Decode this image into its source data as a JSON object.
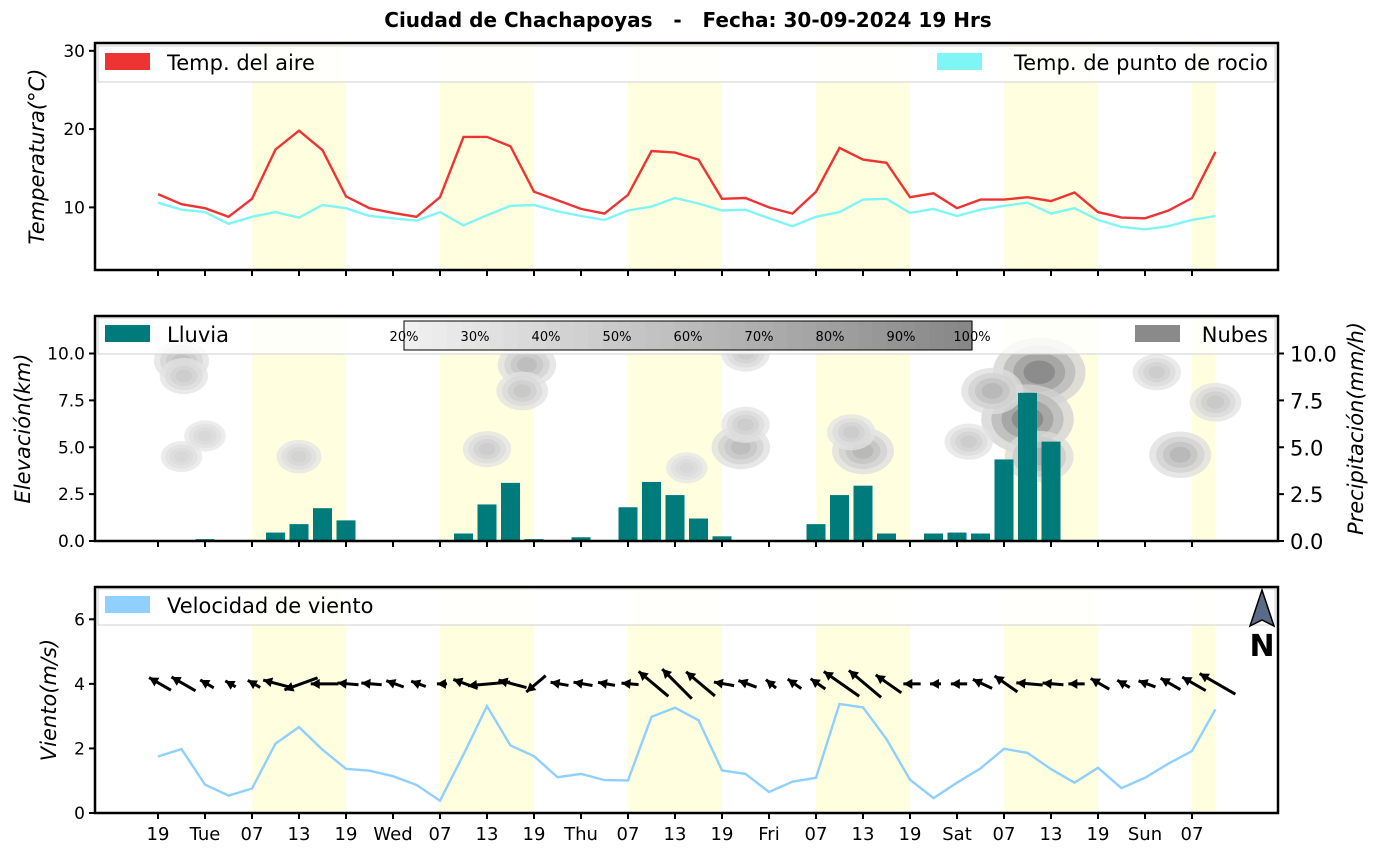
{
  "title": "Ciudad de Chachapoyas   -   Fecha: 30-09-2024 19 Hrs",
  "colors": {
    "air_temp": "#ee3333",
    "dew_point": "#80f5f5",
    "rain": "#007b7b",
    "clouds": "#8a8a8a",
    "wind": "#8fd0ff",
    "daytime_band": "#ffffe0",
    "north_arrow": "#5a6b88"
  },
  "x_tick_labels": [
    "19",
    "Tue",
    "07",
    "13",
    "19",
    "Wed",
    "07",
    "13",
    "19",
    "Thu",
    "07",
    "13",
    "19",
    "Fri",
    "07",
    "13",
    "19",
    "Sat",
    "07",
    "13",
    "19",
    "Sun",
    "07"
  ],
  "north_label": "N",
  "chart_data": [
    {
      "type": "line",
      "panel": "temperature",
      "ylabel": "Temperatura(°C)",
      "ylim": [
        2,
        31
      ],
      "yticks": [
        10,
        20,
        30
      ],
      "grid": false,
      "legend_placement": "top",
      "x_step_hours": 3,
      "series": [
        {
          "name": "Temp. del aire",
          "values": [
            11.7,
            10.4,
            9.9,
            8.8,
            11.1,
            17.4,
            19.8,
            17.3,
            11.4,
            9.9,
            9.3,
            8.8,
            11.3,
            19.0,
            19.0,
            17.8,
            12.0,
            10.9,
            9.8,
            9.2,
            11.6,
            17.2,
            17.0,
            16.1,
            11.1,
            11.2,
            10.0,
            9.2,
            12.0,
            17.6,
            16.1,
            15.7,
            11.3,
            11.8,
            9.9,
            11.0,
            11.0,
            11.3,
            10.8,
            11.9,
            9.4,
            8.7,
            8.6,
            9.6,
            11.2,
            17.1
          ]
        },
        {
          "name": "Temp. de punto de rocio",
          "values": [
            10.6,
            9.7,
            9.4,
            7.9,
            8.8,
            9.4,
            8.7,
            10.3,
            9.9,
            8.9,
            8.6,
            8.3,
            9.4,
            7.7,
            9.0,
            10.2,
            10.3,
            9.5,
            8.9,
            8.4,
            9.6,
            10.1,
            11.2,
            10.5,
            9.6,
            9.7,
            8.6,
            7.6,
            8.8,
            9.4,
            11.0,
            11.1,
            9.3,
            9.8,
            8.9,
            9.7,
            10.2,
            10.6,
            9.2,
            9.9,
            8.4,
            7.5,
            7.2,
            7.6,
            8.4,
            8.9
          ]
        }
      ]
    },
    {
      "type": "bar",
      "panel": "precipitation",
      "ylabel": "Elevación(km)",
      "y2label": "Precipitación(mm/h)",
      "ylim": [
        0,
        12
      ],
      "yticks": [
        "0.0",
        "2.5",
        "5.0",
        "7.5",
        "10.0"
      ],
      "legend_placement": "top",
      "colorbar_labels": [
        "20%",
        "30%",
        "40%",
        "50%",
        "60%",
        "70%",
        "80%",
        "90%",
        "100%"
      ],
      "series": [
        {
          "name": "Lluvia",
          "values": [
            0,
            0,
            0.1,
            0,
            0,
            0.45,
            0.9,
            1.75,
            1.1,
            0.05,
            0,
            0,
            0,
            0.4,
            1.95,
            3.1,
            0.1,
            0.05,
            0.2,
            0,
            1.8,
            3.15,
            2.45,
            1.2,
            0.25,
            0,
            0,
            0,
            0.9,
            2.45,
            2.95,
            0.4,
            0,
            0.4,
            0.45,
            0.4,
            4.35,
            7.9,
            5.3,
            0.05,
            0,
            0,
            0,
            0,
            0,
            0
          ]
        },
        {
          "name": "Nubes",
          "values": []
        }
      ],
      "clouds": [
        {
          "x": 1.0,
          "y": 9.6,
          "d": 0.4
        },
        {
          "x": 1.1,
          "y": 8.8,
          "d": 0.3
        },
        {
          "x": 2.0,
          "y": 5.6,
          "d": 0.2
        },
        {
          "x": 1.0,
          "y": 4.5,
          "d": 0.2
        },
        {
          "x": 6.0,
          "y": 4.5,
          "d": 0.25
        },
        {
          "x": 15.7,
          "y": 9.4,
          "d": 0.45
        },
        {
          "x": 15.5,
          "y": 8.0,
          "d": 0.35
        },
        {
          "x": 14.0,
          "y": 4.9,
          "d": 0.3
        },
        {
          "x": 22.5,
          "y": 3.9,
          "d": 0.2
        },
        {
          "x": 24.8,
          "y": 5.0,
          "d": 0.45
        },
        {
          "x": 25.0,
          "y": 6.2,
          "d": 0.3
        },
        {
          "x": 25.0,
          "y": 10.0,
          "d": 0.3
        },
        {
          "x": 30.0,
          "y": 4.8,
          "d": 0.5
        },
        {
          "x": 29.5,
          "y": 5.8,
          "d": 0.3
        },
        {
          "x": 37.5,
          "y": 9.0,
          "d": 0.95
        },
        {
          "x": 37.0,
          "y": 6.5,
          "d": 0.95
        },
        {
          "x": 37.5,
          "y": 4.5,
          "d": 0.6
        },
        {
          "x": 35.5,
          "y": 8.0,
          "d": 0.5
        },
        {
          "x": 34.5,
          "y": 5.3,
          "d": 0.3
        },
        {
          "x": 43.5,
          "y": 4.6,
          "d": 0.5
        },
        {
          "x": 42.5,
          "y": 9.0,
          "d": 0.3
        },
        {
          "x": 45.0,
          "y": 7.4,
          "d": 0.35
        }
      ]
    },
    {
      "type": "line",
      "panel": "wind",
      "ylabel": "Viento(m/s)",
      "ylim": [
        0,
        7
      ],
      "yticks": [
        0,
        2,
        4,
        6
      ],
      "legend_placement": "top-left",
      "series": [
        {
          "name": "Velocidad de viento",
          "values": [
            1.75,
            1.98,
            0.88,
            0.54,
            0.76,
            2.15,
            2.66,
            1.96,
            1.37,
            1.31,
            1.14,
            0.87,
            0.38,
            1.81,
            3.31,
            2.09,
            1.76,
            1.11,
            1.21,
            1.02,
            1.01,
            2.98,
            3.26,
            2.87,
            1.32,
            1.21,
            0.65,
            0.97,
            1.09,
            3.38,
            3.27,
            2.29,
            1.03,
            0.46,
            0.94,
            1.38,
            1.99,
            1.86,
            1.36,
            0.94,
            1.4,
            0.77,
            1.09,
            1.53,
            1.92,
            3.21
          ]
        }
      ],
      "wind_direction_deg": [
        300,
        300,
        300,
        300,
        300,
        285,
        250,
        270,
        275,
        275,
        290,
        290,
        270,
        290,
        265,
        285,
        230,
        280,
        280,
        280,
        275,
        310,
        315,
        310,
        280,
        290,
        310,
        305,
        305,
        305,
        310,
        305,
        270,
        270,
        270,
        295,
        305,
        275,
        275,
        270,
        300,
        300,
        290,
        300,
        300,
        300
      ]
    }
  ]
}
